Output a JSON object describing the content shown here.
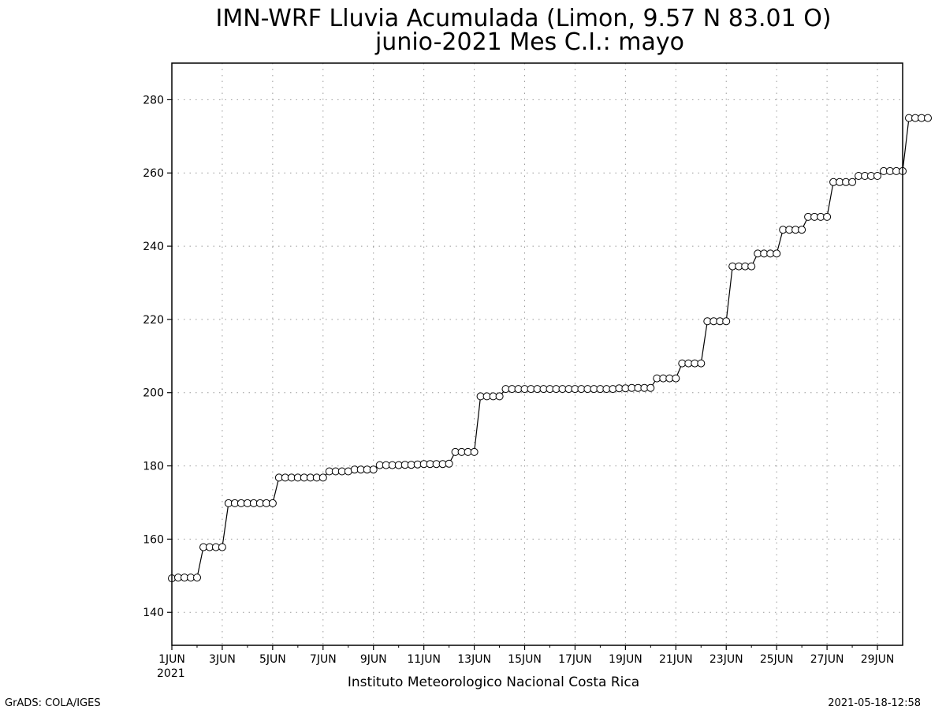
{
  "chart_data": {
    "type": "line",
    "title": "IMN-WRF  Lluvia Acumulada (Limon, 9.57  N 83.01  O)",
    "subtitle": "junio-2021 Mes C.I.: mayo",
    "xlabel": "",
    "ylabel": "",
    "credit": "Instituto Meteorologico Nacional Costa Rica",
    "footer_left": "GrADS: COLA/IGES",
    "footer_right": "2021-05-18-12:58",
    "x_tick_labels": [
      "1JUN",
      "3JUN",
      "5JUN",
      "7JUN",
      "9JUN",
      "11JUN",
      "13JUN",
      "15JUN",
      "17JUN",
      "19JUN",
      "21JUN",
      "23JUN",
      "25JUN",
      "27JUN",
      "29JUN"
    ],
    "x_tick_sublabel": "2021",
    "y_ticks": [
      140,
      160,
      180,
      200,
      220,
      240,
      260,
      280
    ],
    "xlim": [
      0,
      29
    ],
    "ylim": [
      131,
      290
    ],
    "grid": true,
    "marker": "open-circle",
    "x_step_days": 0.25,
    "series": [
      {
        "values": [
          149.3,
          149.5,
          149.5,
          149.5,
          149.5,
          157.8,
          157.8,
          157.8,
          157.8,
          169.8,
          169.8,
          169.8,
          169.8,
          169.8,
          169.8,
          169.8,
          169.8,
          176.8,
          176.8,
          176.8,
          176.8,
          176.8,
          176.8,
          176.8,
          176.8,
          178.5,
          178.5,
          178.5,
          178.5,
          179.0,
          179.0,
          179.0,
          179.0,
          180.2,
          180.2,
          180.2,
          180.2,
          180.3,
          180.3,
          180.4,
          180.5,
          180.5,
          180.5,
          180.5,
          180.6,
          183.8,
          183.8,
          183.8,
          183.8,
          199.0,
          199.0,
          199.0,
          199.0,
          201.0,
          201.0,
          201.0,
          201.0,
          201.0,
          201.0,
          201.0,
          201.0,
          201.0,
          201.0,
          201.0,
          201.0,
          201.0,
          201.0,
          201.0,
          201.0,
          201.0,
          201.0,
          201.2,
          201.2,
          201.3,
          201.3,
          201.3,
          201.3,
          203.9,
          203.9,
          203.9,
          203.9,
          208.0,
          208.0,
          208.0,
          208.0,
          219.5,
          219.5,
          219.5,
          219.5,
          234.5,
          234.5,
          234.5,
          234.5,
          238.0,
          238.0,
          238.0,
          238.0,
          244.5,
          244.5,
          244.5,
          244.5,
          248.0,
          248.0,
          248.0,
          248.0,
          257.5,
          257.5,
          257.5,
          257.5,
          259.2,
          259.2,
          259.2,
          259.2,
          260.5,
          260.5,
          260.5,
          260.5,
          275.0,
          275.0,
          275.0,
          275.0
        ]
      }
    ]
  }
}
